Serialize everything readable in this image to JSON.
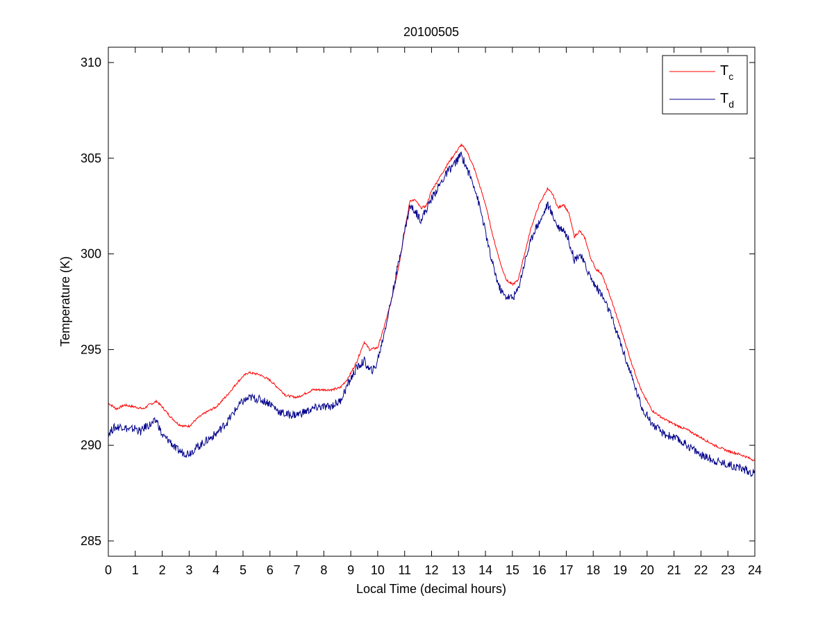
{
  "chart_data": {
    "type": "line",
    "title": "20100505",
    "xlabel": "Local Time (decimal hours)",
    "ylabel": "Temperature (K)",
    "xlim": [
      0,
      24
    ],
    "ylim": [
      284.2,
      310.8
    ],
    "xticks": [
      0,
      1,
      2,
      3,
      4,
      5,
      6,
      7,
      8,
      9,
      10,
      11,
      12,
      13,
      14,
      15,
      16,
      17,
      18,
      19,
      20,
      21,
      22,
      23,
      24
    ],
    "yticks": [
      285,
      290,
      295,
      300,
      305,
      310
    ],
    "grid": false,
    "legend_position": "top-right",
    "series": [
      {
        "name": "T_c",
        "legend_main": "T",
        "legend_sub": "c",
        "color": "#ff0000",
        "points": [
          [
            0,
            292.2
          ],
          [
            0.3,
            291.9
          ],
          [
            0.6,
            292.1
          ],
          [
            1.0,
            292.0
          ],
          [
            1.3,
            291.9
          ],
          [
            1.5,
            292.1
          ],
          [
            1.8,
            292.3
          ],
          [
            2.0,
            292.0
          ],
          [
            2.3,
            291.5
          ],
          [
            2.6,
            291.1
          ],
          [
            2.8,
            291.0
          ],
          [
            3.0,
            291.0
          ],
          [
            3.3,
            291.4
          ],
          [
            3.6,
            291.7
          ],
          [
            4.0,
            292.0
          ],
          [
            4.4,
            292.6
          ],
          [
            4.8,
            293.3
          ],
          [
            5.0,
            293.6
          ],
          [
            5.2,
            293.8
          ],
          [
            5.6,
            293.7
          ],
          [
            6.0,
            293.4
          ],
          [
            6.3,
            293.0
          ],
          [
            6.6,
            292.6
          ],
          [
            7.0,
            292.5
          ],
          [
            7.3,
            292.7
          ],
          [
            7.6,
            292.9
          ],
          [
            8.0,
            292.9
          ],
          [
            8.3,
            292.9
          ],
          [
            8.6,
            293.0
          ],
          [
            8.9,
            293.5
          ],
          [
            9.2,
            294.3
          ],
          [
            9.5,
            295.4
          ],
          [
            9.7,
            295.0
          ],
          [
            10.0,
            295.1
          ],
          [
            10.2,
            296.0
          ],
          [
            10.5,
            297.5
          ],
          [
            10.8,
            299.5
          ],
          [
            11.0,
            301.2
          ],
          [
            11.2,
            302.8
          ],
          [
            11.4,
            302.8
          ],
          [
            11.6,
            302.4
          ],
          [
            11.8,
            302.5
          ],
          [
            12.0,
            303.3
          ],
          [
            12.3,
            304.0
          ],
          [
            12.6,
            304.7
          ],
          [
            12.9,
            305.3
          ],
          [
            13.1,
            305.7
          ],
          [
            13.3,
            305.4
          ],
          [
            13.6,
            304.4
          ],
          [
            14.0,
            302.6
          ],
          [
            14.3,
            300.8
          ],
          [
            14.6,
            299.3
          ],
          [
            14.8,
            298.6
          ],
          [
            15.0,
            298.4
          ],
          [
            15.2,
            298.6
          ],
          [
            15.4,
            299.7
          ],
          [
            15.7,
            301.4
          ],
          [
            16.0,
            302.6
          ],
          [
            16.3,
            303.4
          ],
          [
            16.5,
            303.1
          ],
          [
            16.7,
            302.4
          ],
          [
            16.9,
            302.6
          ],
          [
            17.1,
            302.1
          ],
          [
            17.3,
            300.9
          ],
          [
            17.5,
            301.2
          ],
          [
            17.7,
            300.8
          ],
          [
            17.9,
            299.8
          ],
          [
            18.1,
            299.2
          ],
          [
            18.3,
            299.0
          ],
          [
            18.6,
            297.9
          ],
          [
            19.0,
            296.2
          ],
          [
            19.4,
            294.4
          ],
          [
            19.8,
            292.8
          ],
          [
            20.2,
            291.8
          ],
          [
            20.6,
            291.4
          ],
          [
            21.0,
            291.1
          ],
          [
            21.5,
            290.8
          ],
          [
            22.0,
            290.4
          ],
          [
            22.5,
            290.0
          ],
          [
            23.0,
            289.7
          ],
          [
            23.5,
            289.5
          ],
          [
            24.0,
            289.2
          ]
        ]
      },
      {
        "name": "T_d",
        "legend_main": "T",
        "legend_sub": "d",
        "color": "#00008b",
        "points": [
          [
            0,
            290.6
          ],
          [
            0.2,
            290.9
          ],
          [
            0.5,
            291.0
          ],
          [
            0.8,
            290.8
          ],
          [
            1.0,
            290.9
          ],
          [
            1.2,
            290.7
          ],
          [
            1.4,
            291.0
          ],
          [
            1.6,
            291.1
          ],
          [
            1.8,
            291.3
          ],
          [
            2.0,
            290.5
          ],
          [
            2.3,
            290.2
          ],
          [
            2.5,
            289.8
          ],
          [
            2.8,
            289.6
          ],
          [
            3.0,
            289.6
          ],
          [
            3.3,
            289.9
          ],
          [
            3.6,
            290.2
          ],
          [
            4.0,
            290.6
          ],
          [
            4.4,
            291.2
          ],
          [
            4.8,
            292.0
          ],
          [
            5.0,
            292.3
          ],
          [
            5.3,
            292.5
          ],
          [
            5.6,
            292.4
          ],
          [
            6.0,
            292.2
          ],
          [
            6.3,
            291.8
          ],
          [
            6.6,
            291.6
          ],
          [
            7.0,
            291.6
          ],
          [
            7.4,
            291.8
          ],
          [
            7.8,
            292.0
          ],
          [
            8.2,
            292.0
          ],
          [
            8.6,
            292.3
          ],
          [
            8.9,
            293.2
          ],
          [
            9.2,
            294.0
          ],
          [
            9.5,
            294.4
          ],
          [
            9.7,
            293.9
          ],
          [
            9.9,
            294.0
          ],
          [
            10.1,
            295.0
          ],
          [
            10.4,
            296.9
          ],
          [
            10.7,
            299.0
          ],
          [
            11.0,
            301.2
          ],
          [
            11.2,
            302.5
          ],
          [
            11.4,
            302.2
          ],
          [
            11.6,
            301.8
          ],
          [
            11.8,
            302.3
          ],
          [
            12.0,
            302.9
          ],
          [
            12.3,
            303.6
          ],
          [
            12.6,
            304.3
          ],
          [
            12.9,
            304.8
          ],
          [
            13.1,
            305.2
          ],
          [
            13.3,
            304.5
          ],
          [
            13.6,
            303.5
          ],
          [
            13.9,
            301.8
          ],
          [
            14.2,
            299.8
          ],
          [
            14.5,
            298.3
          ],
          [
            14.7,
            297.8
          ],
          [
            15.0,
            297.7
          ],
          [
            15.2,
            298.1
          ],
          [
            15.5,
            299.8
          ],
          [
            15.8,
            301.2
          ],
          [
            16.1,
            301.9
          ],
          [
            16.3,
            302.6
          ],
          [
            16.5,
            302.0
          ],
          [
            16.7,
            301.4
          ],
          [
            16.9,
            301.3
          ],
          [
            17.1,
            300.7
          ],
          [
            17.3,
            299.7
          ],
          [
            17.5,
            300.0
          ],
          [
            17.7,
            299.4
          ],
          [
            18.0,
            298.5
          ],
          [
            18.3,
            297.9
          ],
          [
            18.6,
            297.0
          ],
          [
            19.0,
            295.4
          ],
          [
            19.4,
            293.7
          ],
          [
            19.8,
            292.0
          ],
          [
            20.2,
            291.1
          ],
          [
            20.6,
            290.6
          ],
          [
            21.0,
            290.4
          ],
          [
            21.5,
            290.0
          ],
          [
            22.0,
            289.5
          ],
          [
            22.5,
            289.2
          ],
          [
            23.0,
            289.0
          ],
          [
            23.5,
            288.8
          ],
          [
            24.0,
            288.5
          ]
        ]
      }
    ]
  }
}
